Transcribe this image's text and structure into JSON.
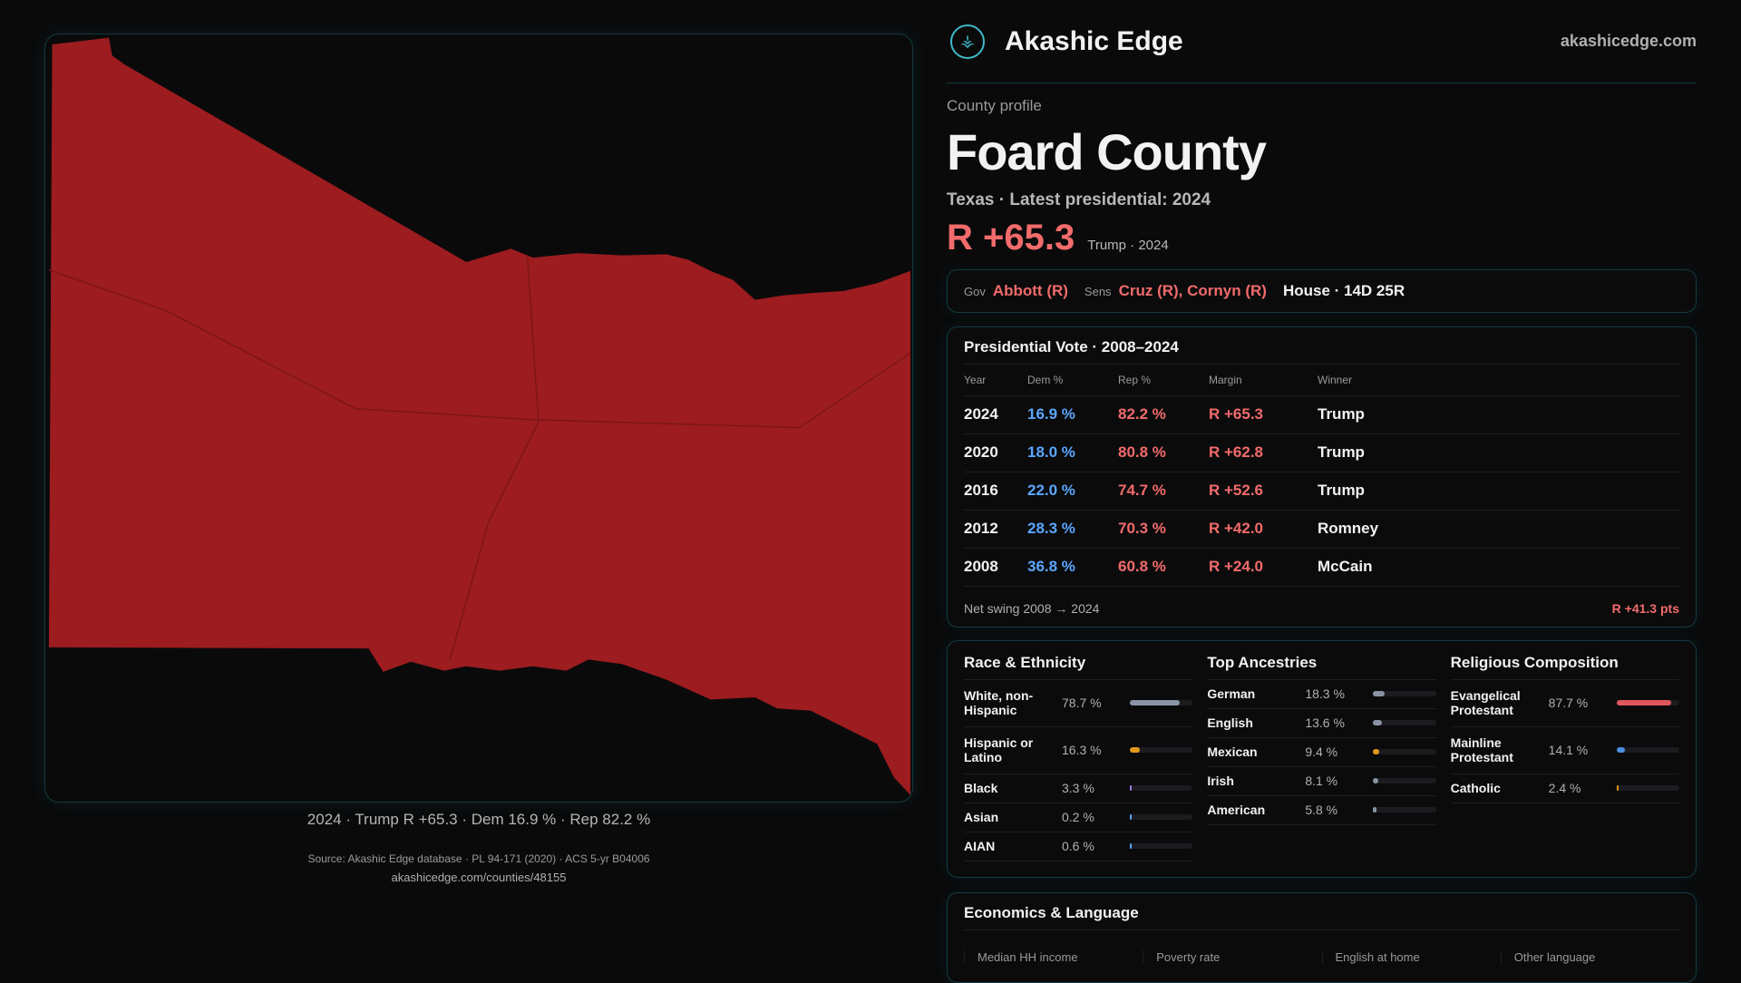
{
  "map": {
    "caption": "2024 · Trump R +65.3 · Dem 16.9 % · Rep 82.2 %",
    "fill": "#9c1c1f"
  },
  "header": {
    "brand": "Akashic Edge",
    "domain": "akashicedge.com"
  },
  "profile": {
    "kicker": "County profile",
    "title": "Foard County",
    "subtitle": "Texas · Latest presidential: 2024",
    "margin": "R +65.3",
    "margin_note": "Trump · 2024"
  },
  "officials": {
    "gov_label": "Gov",
    "gov": "Abbott (R)",
    "sens_label": "Sens",
    "sens": "Cruz (R), Cornyn (R)",
    "house": "House · 14D 25R"
  },
  "presidential": {
    "title": "Presidential Vote · 2008–2024",
    "headers": [
      "Year",
      "Dem %",
      "Rep %",
      "Margin",
      "Winner"
    ],
    "rows": [
      [
        "2024",
        "16.9 %",
        "82.2 %",
        "R +65.3",
        "Trump"
      ],
      [
        "2020",
        "18.0 %",
        "80.8 %",
        "R +62.8",
        "Trump"
      ],
      [
        "2016",
        "22.0 %",
        "74.7 %",
        "R +52.6",
        "Trump"
      ],
      [
        "2012",
        "28.3 %",
        "70.3 %",
        "R +42.0",
        "Romney"
      ],
      [
        "2008",
        "36.8 %",
        "60.8 %",
        "R +24.0",
        "McCain"
      ]
    ],
    "swing_label": "Net swing 2008 → 2024",
    "swing_value": "R +41.3 pts"
  },
  "race": {
    "title": "Race & Ethnicity",
    "items": [
      {
        "name": "White, non-Hispanic",
        "value": "78.7 %",
        "pct": 78.7,
        "color": "#8a94a6"
      },
      {
        "name": "Hispanic or Latino",
        "value": "16.3 %",
        "pct": 16.3,
        "color": "#e09a1a"
      },
      {
        "name": "Black",
        "value": "3.3 %",
        "pct": 3.3,
        "color": "#9a7ae0"
      },
      {
        "name": "Asian",
        "value": "0.2 %",
        "pct": 0.2,
        "color": "#5aa7ff"
      },
      {
        "name": "AIAN",
        "value": "0.6 %",
        "pct": 0.6,
        "color": "#5aa7ff"
      }
    ]
  },
  "ancestry": {
    "title": "Top Ancestries",
    "items": [
      {
        "name": "German",
        "value": "18.3 %",
        "pct": 18.3,
        "color": "#8a94a6"
      },
      {
        "name": "English",
        "value": "13.6 %",
        "pct": 13.6,
        "color": "#8a94a6"
      },
      {
        "name": "Mexican",
        "value": "9.4 %",
        "pct": 9.4,
        "color": "#e09a1a"
      },
      {
        "name": "Irish",
        "value": "8.1 %",
        "pct": 8.1,
        "color": "#8a94a6"
      },
      {
        "name": "American",
        "value": "5.8 %",
        "pct": 5.8,
        "color": "#8a94a6"
      }
    ]
  },
  "religion": {
    "title": "Religious Composition",
    "items": [
      {
        "name": "Evangelical Protestant",
        "value": "87.7 %",
        "pct": 87.7,
        "color": "#e0565b"
      },
      {
        "name": "Mainline Protestant",
        "value": "14.1 %",
        "pct": 14.1,
        "color": "#4a8ee0"
      },
      {
        "name": "Catholic",
        "value": "2.4 %",
        "pct": 2.4,
        "color": "#e09a1a"
      }
    ]
  },
  "economics": {
    "title": "Economics & Language",
    "labels": [
      "Median HH income",
      "Poverty rate",
      "English at home",
      "Other language"
    ]
  },
  "source": {
    "line": "Source: Akashic Edge database · PL 94-171 (2020) · ACS 5-yr B04006",
    "url": "akashicedge.com/counties/48155"
  }
}
